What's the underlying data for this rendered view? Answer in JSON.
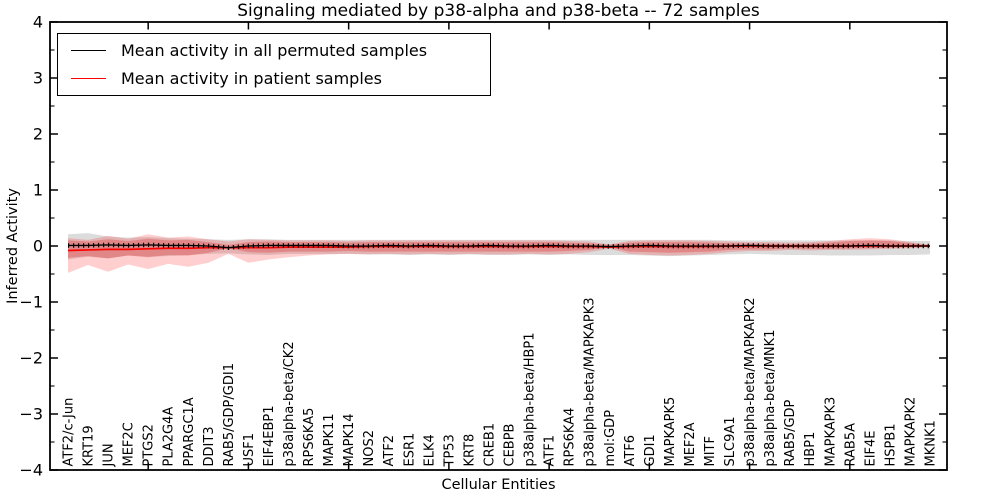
{
  "figure": {
    "title": "Signaling mediated by p38-alpha and p38-beta -- 72 samples",
    "xlabel": "Cellular Entities",
    "ylabel": "Inferred Activity"
  },
  "legend": {
    "entries": [
      {
        "label": "Mean activity in all permuted samples",
        "color": "#000000"
      },
      {
        "label": "Mean activity in patient samples",
        "color": "#ff0000"
      }
    ]
  },
  "chart_data": {
    "type": "line",
    "title": "Signaling mediated by p38-alpha and p38-beta -- 72 samples",
    "xlabel": "Cellular Entities",
    "ylabel": "Inferred Activity",
    "ylim": [
      -4,
      4
    ],
    "ytick_values": [
      4,
      3,
      2,
      1,
      0,
      -1,
      -2,
      -3,
      -4
    ],
    "ytick_labels": [
      "4",
      "3",
      "2",
      "1",
      "0",
      "−1",
      "−2",
      "−3",
      "−4"
    ],
    "y_minor_step": 0.5,
    "x_major_tick_every": 5,
    "grid": false,
    "legend_position": "upper left",
    "categories": [
      "ATF2/c-Jun",
      "KRT19",
      "JUN",
      "MEF2C",
      "PTGS2",
      "PLA2G4A",
      "PPARGC1A",
      "DDIT3",
      "RAB5/GDP/GDI1",
      "USF1",
      "EIF4EBP1",
      "p38alpha-beta/CK2",
      "RPS6KA5",
      "MAPK11",
      "MAPK14",
      "NOS2",
      "ATF2",
      "ESR1",
      "ELK4",
      "TP53",
      "KRT8",
      "CREB1",
      "CEBPB",
      "p38alpha-beta/HBP1",
      "ATF1",
      "RPS6KA4",
      "p38alpha-beta/MAPKAPK3",
      "mol:GDP",
      "ATF6",
      "GDI1",
      "MAPKAPK5",
      "MEF2A",
      "MITF",
      "SLC9A1",
      "p38alpha-beta/MAPKAPK2",
      "p38alpha-beta/MNK1",
      "RAB5/GDP",
      "HBP1",
      "MAPKAPK3",
      "RAB5A",
      "EIF4E",
      "HSPB1",
      "MAPKAPK2",
      "MKNK1"
    ],
    "series": [
      {
        "name": "Mean activity in all permuted samples",
        "color": "#000000",
        "style": "solid-with-dense-tick-markers",
        "values": [
          0.01,
          0.01,
          0.02,
          0.01,
          0.02,
          0.01,
          0.01,
          0.0,
          -0.03,
          0.0,
          0.01,
          0.01,
          0.01,
          0.01,
          0.0,
          0.0,
          0.01,
          0.0,
          0.01,
          0.0,
          0.0,
          0.01,
          0.0,
          0.0,
          0.01,
          0.0,
          0.0,
          -0.01,
          0.0,
          0.01,
          0.0,
          0.0,
          0.0,
          0.0,
          0.01,
          0.0,
          0.0,
          0.0,
          0.0,
          0.0,
          0.01,
          0.0,
          0.0,
          0.0
        ]
      },
      {
        "name": "Mean activity in patient samples",
        "color": "#ff0000",
        "style": "solid",
        "values": [
          -0.08,
          -0.07,
          -0.06,
          -0.06,
          -0.05,
          -0.04,
          -0.04,
          -0.03,
          -0.03,
          -0.03,
          -0.03,
          -0.02,
          -0.02,
          -0.02,
          -0.02,
          -0.01,
          -0.01,
          -0.01,
          -0.01,
          -0.01,
          -0.01,
          -0.01,
          -0.01,
          -0.01,
          -0.01,
          -0.01,
          -0.01,
          -0.02,
          -0.01,
          -0.01,
          -0.01,
          -0.01,
          -0.01,
          0.0,
          0.0,
          0.0,
          0.0,
          0.0,
          0.0,
          0.0,
          0.0,
          0.0,
          0.0,
          0.0
        ]
      }
    ],
    "bands": [
      {
        "name": "permuted-samples-range",
        "color": "#787878",
        "opacity": 0.26,
        "upper": [
          0.21,
          0.23,
          0.17,
          0.15,
          0.16,
          0.14,
          0.13,
          0.12,
          0.11,
          0.12,
          0.12,
          0.11,
          0.11,
          0.11,
          0.11,
          0.11,
          0.11,
          0.11,
          0.11,
          0.11,
          0.11,
          0.11,
          0.11,
          0.11,
          0.11,
          0.11,
          0.11,
          0.11,
          0.11,
          0.11,
          0.11,
          0.11,
          0.11,
          0.1,
          0.1,
          0.1,
          0.1,
          0.1,
          0.1,
          0.1,
          0.1,
          0.1,
          0.09,
          0.09
        ],
        "lower": [
          -0.24,
          -0.19,
          -0.22,
          -0.17,
          -0.19,
          -0.18,
          -0.16,
          -0.14,
          -0.13,
          -0.15,
          -0.16,
          -0.14,
          -0.14,
          -0.14,
          -0.14,
          -0.15,
          -0.15,
          -0.16,
          -0.15,
          -0.16,
          -0.15,
          -0.16,
          -0.16,
          -0.15,
          -0.16,
          -0.15,
          -0.16,
          -0.16,
          -0.16,
          -0.17,
          -0.18,
          -0.17,
          -0.16,
          -0.15,
          -0.14,
          -0.15,
          -0.16,
          -0.16,
          -0.17,
          -0.17,
          -0.17,
          -0.16,
          -0.16,
          -0.15
        ]
      },
      {
        "name": "patient-samples-range-outer",
        "color": "#ff2020",
        "opacity": 0.22,
        "upper": [
          0.14,
          0.11,
          0.18,
          0.13,
          0.21,
          0.15,
          0.17,
          0.12,
          0.08,
          0.12,
          0.11,
          0.1,
          0.1,
          0.1,
          0.09,
          0.1,
          0.1,
          0.1,
          0.1,
          0.1,
          0.1,
          0.1,
          0.1,
          0.1,
          0.1,
          0.09,
          0.08,
          0.03,
          0.09,
          0.1,
          0.1,
          0.1,
          0.09,
          0.08,
          0.07,
          0.07,
          0.06,
          0.07,
          0.09,
          0.12,
          0.14,
          0.12,
          0.07,
          0.02
        ],
        "lower": [
          -0.48,
          -0.34,
          -0.46,
          -0.33,
          -0.41,
          -0.32,
          -0.37,
          -0.3,
          -0.14,
          -0.3,
          -0.24,
          -0.2,
          -0.17,
          -0.15,
          -0.14,
          -0.15,
          -0.14,
          -0.15,
          -0.14,
          -0.15,
          -0.14,
          -0.15,
          -0.15,
          -0.14,
          -0.15,
          -0.14,
          -0.11,
          -0.05,
          -0.14,
          -0.16,
          -0.17,
          -0.16,
          -0.14,
          -0.11,
          -0.09,
          -0.09,
          -0.07,
          -0.08,
          -0.07,
          -0.07,
          -0.06,
          -0.05,
          -0.04,
          -0.02
        ]
      },
      {
        "name": "patient-samples-range-inner",
        "color": "#e03030",
        "opacity": 0.33,
        "upper": [
          0.1,
          0.08,
          0.12,
          0.09,
          0.13,
          0.1,
          0.11,
          0.07,
          0.02,
          0.07,
          0.08,
          0.07,
          0.07,
          0.07,
          0.06,
          0.07,
          0.07,
          0.07,
          0.07,
          0.07,
          0.07,
          0.07,
          0.07,
          0.07,
          0.07,
          0.06,
          0.05,
          0.02,
          0.06,
          0.07,
          0.07,
          0.07,
          0.06,
          0.05,
          0.04,
          0.04,
          0.03,
          0.04,
          0.06,
          0.09,
          0.1,
          0.09,
          0.05,
          0.01
        ],
        "lower": [
          -0.21,
          -0.18,
          -0.22,
          -0.17,
          -0.2,
          -0.16,
          -0.17,
          -0.12,
          -0.04,
          -0.11,
          -0.12,
          -0.1,
          -0.1,
          -0.1,
          -0.09,
          -0.1,
          -0.1,
          -0.1,
          -0.1,
          -0.1,
          -0.1,
          -0.1,
          -0.1,
          -0.1,
          -0.1,
          -0.09,
          -0.07,
          -0.02,
          -0.1,
          -0.11,
          -0.12,
          -0.11,
          -0.1,
          -0.07,
          -0.06,
          -0.06,
          -0.04,
          -0.05,
          -0.05,
          -0.04,
          -0.04,
          -0.03,
          -0.02,
          -0.01
        ]
      }
    ]
  }
}
